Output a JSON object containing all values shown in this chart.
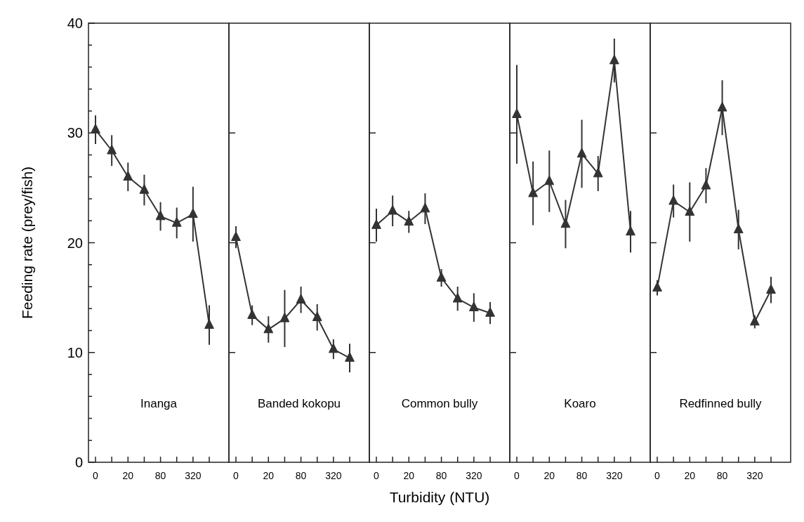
{
  "chart_data": [
    {
      "type": "line",
      "ylabel": "Feeding rate (prey/fish)",
      "categories": [
        "0",
        null,
        "20",
        null,
        "80",
        null,
        "320",
        null
      ],
      "ylim": [
        0,
        40
      ],
      "yticks": [
        0,
        {
          "value": 2,
          "label": null
        },
        {
          "value": 4,
          "label": null
        },
        {
          "value": 6,
          "label": null
        },
        {
          "value": 8,
          "label": null
        },
        10,
        {
          "value": 12,
          "label": null
        },
        {
          "value": 14,
          "label": null
        },
        {
          "value": 16,
          "label": null
        },
        {
          "value": 18,
          "label": null
        },
        20,
        {
          "value": 22,
          "label": null
        },
        {
          "value": 24,
          "label": null
        },
        {
          "value": 26,
          "label": null
        },
        {
          "value": 28,
          "label": null
        },
        30,
        {
          "value": 32,
          "label": null
        },
        {
          "value": 34,
          "label": null
        },
        {
          "value": 36,
          "label": null
        },
        {
          "value": 38,
          "label": null
        },
        40
      ],
      "marker": "triangle",
      "color": "#333333",
      "annotations": [
        "Inanga"
      ],
      "values": [
        30.3,
        28.4,
        26.0,
        24.8,
        22.4,
        21.8,
        22.6,
        12.5
      ],
      "errors": [
        1.3,
        1.4,
        1.3,
        1.4,
        1.3,
        1.4,
        2.5,
        1.8
      ]
    },
    {
      "type": "line",
      "categories": [
        "0",
        null,
        "20",
        null,
        "80",
        null,
        "320",
        null
      ],
      "ylim": [
        0,
        40
      ],
      "yticks": [
        10,
        20,
        30
      ],
      "tick_labels": "x",
      "marker": "triangle",
      "color": "#333333",
      "annotations": [
        "Banded kokopu"
      ],
      "values": [
        20.5,
        13.4,
        12.1,
        13.1,
        14.8,
        13.2,
        10.3,
        9.5
      ],
      "errors": [
        1.0,
        0.9,
        1.2,
        2.6,
        1.2,
        1.2,
        0.9,
        1.3
      ]
    },
    {
      "type": "line",
      "xlabel": "Turbidity (NTU)",
      "categories": [
        "0",
        null,
        "20",
        null,
        "80",
        null,
        "320",
        null
      ],
      "ylim": [
        0,
        40
      ],
      "yticks": [
        10,
        20,
        30
      ],
      "tick_labels": "x",
      "marker": "triangle",
      "color": "#333333",
      "annotations": [
        "Common bully"
      ],
      "values": [
        21.6,
        22.9,
        21.9,
        23.1,
        16.8,
        14.9,
        14.1,
        13.6
      ],
      "errors": [
        1.5,
        1.4,
        1.0,
        1.4,
        0.8,
        1.1,
        1.3,
        1.0
      ]
    },
    {
      "type": "line",
      "categories": [
        "0",
        null,
        "20",
        null,
        "80",
        null,
        "320",
        null
      ],
      "ylim": [
        0,
        40
      ],
      "yticks": [
        10,
        20,
        30
      ],
      "tick_labels": "x",
      "marker": "triangle",
      "color": "#333333",
      "annotations": [
        "Koaro"
      ],
      "values": [
        31.7,
        24.5,
        25.6,
        21.7,
        28.1,
        26.3,
        36.6,
        21.0
      ],
      "errors": [
        4.5,
        2.9,
        2.8,
        2.2,
        3.1,
        1.6,
        2.0,
        1.9
      ]
    },
    {
      "type": "line",
      "categories": [
        "0",
        null,
        "20",
        null,
        "80",
        null,
        "320",
        null
      ],
      "ylim": [
        0,
        40
      ],
      "yticks": [
        10,
        20,
        30
      ],
      "tick_labels": "x",
      "marker": "triangle",
      "color": "#333333",
      "annotations": [
        "Redfinned bully"
      ],
      "values": [
        15.9,
        23.8,
        22.8,
        25.2,
        32.3,
        21.2,
        12.8,
        15.7
      ],
      "errors": [
        0.7,
        1.5,
        2.7,
        1.6,
        2.5,
        1.8,
        0.6,
        1.2
      ]
    }
  ]
}
